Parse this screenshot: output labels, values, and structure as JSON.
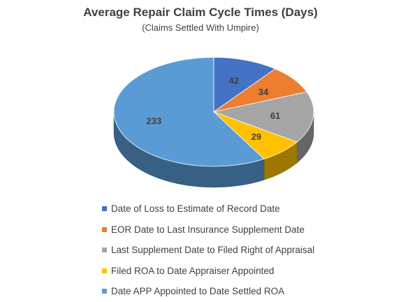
{
  "chart_data": {
    "type": "pie",
    "title": "Average Repair Claim Cycle Times (Days)",
    "subtitle": "(Claims Settled With Umpire)",
    "three_d": true,
    "legend_position": "bottom",
    "categories": [
      "Date of Loss to Estimate of Record Date",
      "EOR Date to Last Insurance Supplement Date",
      "Last Supplement Date to Filed Right of Appraisal",
      "Filed ROA to Date Appraiser Appointed",
      "Date APP Appointed to Date Settled ROA"
    ],
    "values": [
      42,
      34,
      61,
      29,
      233
    ],
    "data_labels": [
      "42",
      "34",
      "61",
      "29",
      "233"
    ],
    "colors": [
      "#4472C4",
      "#ED7D31",
      "#A5A5A5",
      "#FFC000",
      "#5B9BD5"
    ]
  }
}
